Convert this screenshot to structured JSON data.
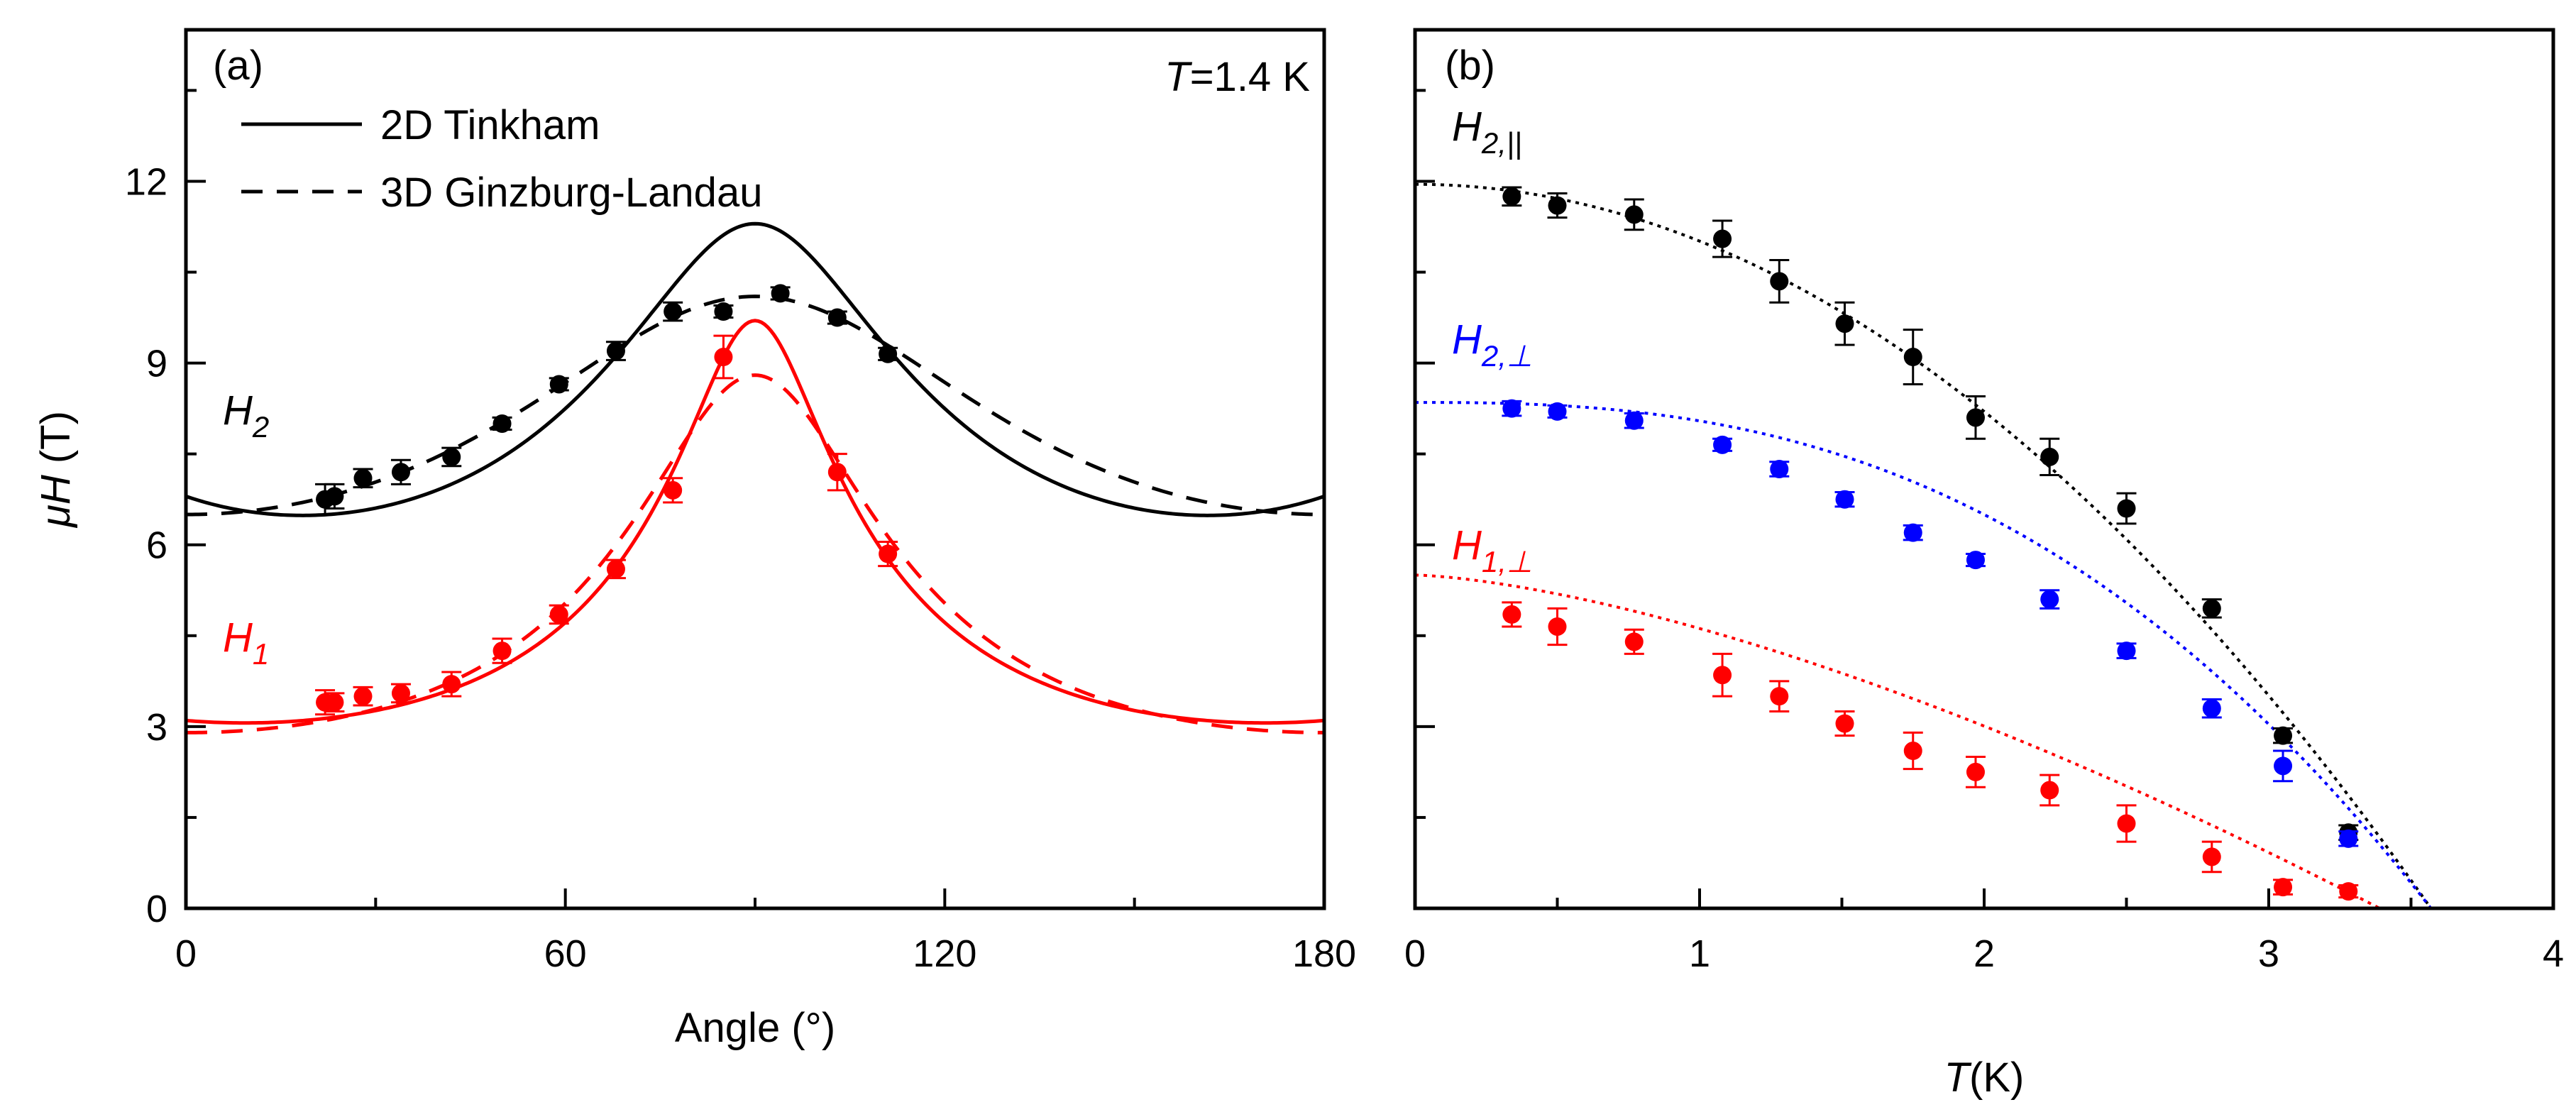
{
  "chart_data": [
    {
      "type": "scatter",
      "panel_label": "(a)",
      "xlabel": "Angle (°)",
      "ylabel": "μH (T)",
      "xlim": [
        0,
        180
      ],
      "ylim": [
        0,
        14.5
      ],
      "xticks": [
        0,
        60,
        120,
        180
      ],
      "yticks": [
        0,
        3,
        6,
        9,
        12
      ],
      "annotation_temperature": "=1.4 K",
      "annotation_temperature_symbol": "T",
      "legend": [
        {
          "label": "2D Tinkham",
          "style": "solid"
        },
        {
          "label": "3D Ginzburg-Landau",
          "style": "dashed"
        }
      ],
      "series": [
        {
          "name": "H2",
          "label_main": "H",
          "label_sub": "2",
          "color": "#000000",
          "points": [
            {
              "x": 22,
              "y": 6.75,
              "err": 0.25
            },
            {
              "x": 23.5,
              "y": 6.8,
              "err": 0.2
            },
            {
              "x": 28,
              "y": 7.1,
              "err": 0.15
            },
            {
              "x": 34,
              "y": 7.2,
              "err": 0.2
            },
            {
              "x": 42,
              "y": 7.45,
              "err": 0.15
            },
            {
              "x": 50,
              "y": 8.0,
              "err": 0.1
            },
            {
              "x": 59,
              "y": 8.65,
              "err": 0.1
            },
            {
              "x": 68,
              "y": 9.2,
              "err": 0.15
            },
            {
              "x": 77,
              "y": 9.85,
              "err": 0.15
            },
            {
              "x": 85,
              "y": 9.85,
              "err": 0.1
            },
            {
              "x": 94,
              "y": 10.15,
              "err": 0.1
            },
            {
              "x": 103,
              "y": 9.75,
              "err": 0.1
            },
            {
              "x": 111,
              "y": 9.15,
              "err": 0.1
            }
          ],
          "fit_tinkham": {
            "y0": 6.8,
            "peak": 11.3
          },
          "fit_gl": {
            "y0": 6.5,
            "peak": 10.1
          }
        },
        {
          "name": "H1",
          "label_main": "H",
          "label_sub": "1",
          "color": "#ff0000",
          "points": [
            {
              "x": 22,
              "y": 3.4,
              "err": 0.2
            },
            {
              "x": 23.5,
              "y": 3.4,
              "err": 0.15
            },
            {
              "x": 28,
              "y": 3.5,
              "err": 0.15
            },
            {
              "x": 34,
              "y": 3.55,
              "err": 0.15
            },
            {
              "x": 42,
              "y": 3.7,
              "err": 0.2
            },
            {
              "x": 50,
              "y": 4.25,
              "err": 0.2
            },
            {
              "x": 59,
              "y": 4.85,
              "err": 0.15
            },
            {
              "x": 68,
              "y": 5.6,
              "err": 0.15
            },
            {
              "x": 77,
              "y": 6.9,
              "err": 0.2
            },
            {
              "x": 85,
              "y": 9.1,
              "err": 0.35
            },
            {
              "x": 103,
              "y": 7.2,
              "err": 0.3
            },
            {
              "x": 111,
              "y": 5.85,
              "err": 0.2
            }
          ],
          "fit_tinkham": {
            "y0": 3.1,
            "peak": 9.7
          },
          "fit_gl": {
            "y0": 2.9,
            "peak": 8.8
          }
        }
      ]
    },
    {
      "type": "scatter",
      "panel_label": "(b)",
      "xlabel": "(K)",
      "xlabel_symbol": "T",
      "ylabel": "",
      "xlim": [
        0,
        4
      ],
      "ylim": [
        0,
        14.5
      ],
      "xticks": [
        0,
        1,
        2,
        3,
        4
      ],
      "yticks": [
        0,
        3,
        6,
        9,
        12
      ],
      "series": [
        {
          "name": "H2,parallel",
          "label_main": "H",
          "label_sub": "2,||",
          "color": "#000000",
          "fit": {
            "h0": 11.95,
            "tc": 3.57,
            "p": 2
          },
          "points": [
            {
              "x": 0.34,
              "y": 11.75,
              "err": 0.15
            },
            {
              "x": 0.5,
              "y": 11.6,
              "err": 0.2
            },
            {
              "x": 0.77,
              "y": 11.45,
              "err": 0.25
            },
            {
              "x": 1.08,
              "y": 11.05,
              "err": 0.3
            },
            {
              "x": 1.28,
              "y": 10.35,
              "err": 0.35
            },
            {
              "x": 1.51,
              "y": 9.65,
              "err": 0.35
            },
            {
              "x": 1.75,
              "y": 9.1,
              "err": 0.45
            },
            {
              "x": 1.97,
              "y": 8.1,
              "err": 0.35
            },
            {
              "x": 2.23,
              "y": 7.45,
              "err": 0.3
            },
            {
              "x": 2.5,
              "y": 6.6,
              "err": 0.25
            },
            {
              "x": 2.8,
              "y": 4.95,
              "err": 0.15
            },
            {
              "x": 3.05,
              "y": 2.85,
              "err": 0.12
            },
            {
              "x": 3.28,
              "y": 1.25,
              "err": 0.12
            }
          ]
        },
        {
          "name": "H2,perp",
          "label_main": "H",
          "label_sub": "2,⊥",
          "color": "#0000ff",
          "fit": {
            "h0": 8.35,
            "tc": 3.57,
            "p": 2.6
          },
          "points": [
            {
              "x": 0.34,
              "y": 8.25,
              "err": 0.12
            },
            {
              "x": 0.5,
              "y": 8.2,
              "err": 0.1
            },
            {
              "x": 0.77,
              "y": 8.05,
              "err": 0.12
            },
            {
              "x": 1.08,
              "y": 7.65,
              "err": 0.1
            },
            {
              "x": 1.28,
              "y": 7.25,
              "err": 0.12
            },
            {
              "x": 1.51,
              "y": 6.75,
              "err": 0.12
            },
            {
              "x": 1.75,
              "y": 6.2,
              "err": 0.12
            },
            {
              "x": 1.97,
              "y": 5.75,
              "err": 0.1
            },
            {
              "x": 2.23,
              "y": 5.1,
              "err": 0.15
            },
            {
              "x": 2.5,
              "y": 4.25,
              "err": 0.12
            },
            {
              "x": 2.8,
              "y": 3.3,
              "err": 0.15
            },
            {
              "x": 3.05,
              "y": 2.35,
              "err": 0.25
            },
            {
              "x": 3.28,
              "y": 1.15,
              "err": 0.12
            }
          ]
        },
        {
          "name": "H1,perp",
          "label_main": "H",
          "label_sub": "1,⊥",
          "color": "#ff0000",
          "fit": {
            "h0": 5.5,
            "tc": 3.39,
            "p": 1.5
          },
          "points": [
            {
              "x": 0.34,
              "y": 4.85,
              "err": 0.2
            },
            {
              "x": 0.5,
              "y": 4.65,
              "err": 0.3
            },
            {
              "x": 0.77,
              "y": 4.4,
              "err": 0.2
            },
            {
              "x": 1.08,
              "y": 3.85,
              "err": 0.35
            },
            {
              "x": 1.28,
              "y": 3.5,
              "err": 0.25
            },
            {
              "x": 1.51,
              "y": 3.05,
              "err": 0.2
            },
            {
              "x": 1.75,
              "y": 2.6,
              "err": 0.3
            },
            {
              "x": 1.97,
              "y": 2.25,
              "err": 0.25
            },
            {
              "x": 2.23,
              "y": 1.95,
              "err": 0.25
            },
            {
              "x": 2.5,
              "y": 1.4,
              "err": 0.3
            },
            {
              "x": 2.8,
              "y": 0.85,
              "err": 0.25
            },
            {
              "x": 3.05,
              "y": 0.35,
              "err": 0.12
            },
            {
              "x": 3.28,
              "y": 0.28,
              "err": 0.1
            }
          ]
        }
      ]
    }
  ]
}
